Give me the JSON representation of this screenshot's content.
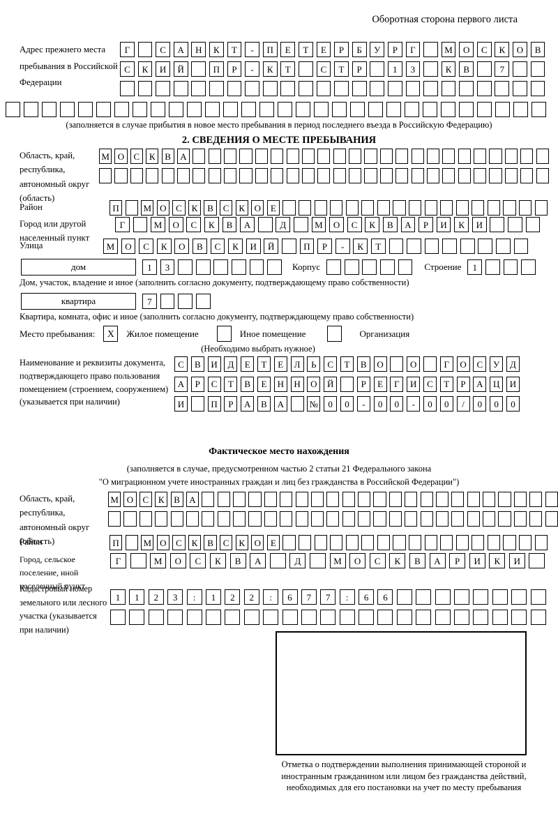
{
  "header": {
    "page_note": "Оборотная сторона первого листа"
  },
  "prev_address": {
    "label": "Адрес прежнего места пребывания в Российской Федерации",
    "row1": {
      "len": 24,
      "text": "Г САНКТ-ПЕТЕРБУРГ МОСКОВ"
    },
    "row2": {
      "len": 24,
      "text": "СКИЙ ПР-КТ СТР 13 КВ 7"
    },
    "row3": {
      "len": 24,
      "text": ""
    },
    "row4": {
      "len": 30,
      "text": ""
    },
    "caption": "(заполняется в случае прибытия в новое место пребывания в период последнего въезда в Российскую Федерацию)"
  },
  "section2": {
    "title": "2. СВЕДЕНИЯ О МЕСТЕ ПРЕБЫВАНИЯ",
    "oblast": {
      "label": "Область, край, республика, автономный округ (область)",
      "row1": {
        "len": 29,
        "text": "МОСКВА"
      },
      "row2": {
        "len": 29,
        "text": ""
      }
    },
    "raion": {
      "label": "Район",
      "row": {
        "len": 28,
        "text": "П МОСКВСКОЕ"
      }
    },
    "gorod": {
      "label": "Город или другой населенный пункт",
      "row": {
        "len": 24,
        "text": "Г МОСКВА Д МОСКВАРИКИ"
      }
    },
    "ulitsa": {
      "label": "Улица",
      "row": {
        "len": 24,
        "text": "МОСКОВСКИЙ ПР-КТ"
      }
    },
    "dom": {
      "box_label": "дом",
      "cells": {
        "len": 8,
        "text": "13"
      },
      "korpus_label": "Корпус",
      "korpus_cells": {
        "len": 5,
        "text": ""
      },
      "stroenie_label": "Строение",
      "stroenie_cells": {
        "len": 4,
        "text": "1"
      },
      "caption": "Дом, участок, владение и иное (заполнить согласно документу, подтверждающему право собственности)"
    },
    "kvartira": {
      "box_label": "квартира",
      "cells": {
        "len": 4,
        "text": "7"
      },
      "caption": "Квартира, комната, офис и иное (заполнить согласно документу, подтверждающему право собственности)"
    },
    "mesto": {
      "label": "Место пребывания:",
      "options": [
        {
          "label": "Жилое помещение",
          "checked": "X"
        },
        {
          "label": "Иное помещение",
          "checked": ""
        },
        {
          "label": "Организация",
          "checked": ""
        }
      ],
      "note": "(Необходимо выбрать нужное)"
    },
    "document": {
      "label": "Наименование и реквизиты документа, подтверждающего право пользования помещением (строением, сооружением) (указывается при наличии)",
      "row1": {
        "len": 21,
        "text": "СВИДЕТЕЛЬСТВО О ГОСУД"
      },
      "row2": {
        "len": 21,
        "text": "АРСТВЕННОЙ РЕГИСТРАЦИ"
      },
      "row3": {
        "len": 21,
        "text": "И ПРАВА №00-00-00/000"
      }
    }
  },
  "actual_location": {
    "title": "Фактическое место нахождения",
    "subtitle1": "(заполняется в случае, предусмотренном частью 2 статьи 21 Федерального закона",
    "subtitle2": "\"О миграционном учете иностранных граждан и лиц без гражданства в Российской Федерации\")",
    "oblast": {
      "label": "Область, край, республика, автономный округ (область)",
      "row1": {
        "len": 29,
        "text": "МОСКВА"
      },
      "row2": {
        "len": 29,
        "text": ""
      }
    },
    "raion": {
      "label": "Район",
      "row": {
        "len": 28,
        "text": "П МОСКВСКОЕ"
      }
    },
    "gorod": {
      "label": "Город, сельское поселение, иной населенный пункт",
      "row": {
        "len": 22,
        "text": "Г МОСКВА Д МОСКВАРИКИ"
      }
    },
    "kadastr": {
      "label": "Кадастровый номер земельного или лесного участка (указывается при наличии)",
      "row1": {
        "len": 23,
        "text": "1123:122:677:66"
      },
      "row2": {
        "len": 23,
        "text": ""
      }
    }
  },
  "confirmation": {
    "caption": "Отметка о подтверждении выполнения принимающей стороной и иностранным гражданином или лицом без гражданства действий, необходимых для его постановки на учет по месту пребывания"
  }
}
